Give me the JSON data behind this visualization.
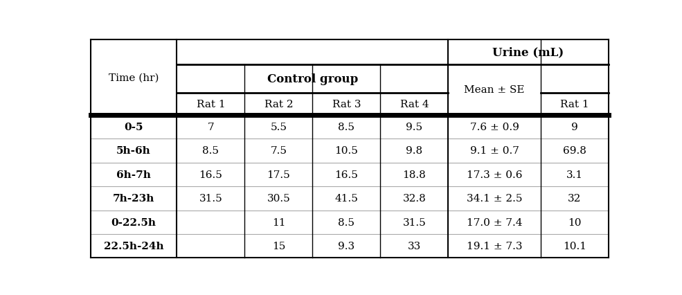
{
  "rows": [
    [
      "0-5",
      "7",
      "5.5",
      "8.5",
      "9.5",
      "7.6 ± 0.9",
      "9"
    ],
    [
      "5h-6h",
      "8.5",
      "7.5",
      "10.5",
      "9.8",
      "9.1 ± 0.7",
      "69.8"
    ],
    [
      "6h-7h",
      "16.5",
      "17.5",
      "16.5",
      "18.8",
      "17.3 ± 0.6",
      "3.1"
    ],
    [
      "7h-23h",
      "31.5",
      "30.5",
      "41.5",
      "32.8",
      "34.1 ± 2.5",
      "32"
    ],
    [
      "0-22.5h",
      "",
      "11",
      "8.5",
      "31.5",
      "17.0 ± 7.4",
      "10"
    ],
    [
      "22.5h-24h",
      "",
      "15",
      "9.3",
      "33",
      "19.1 ± 7.3",
      "10.1"
    ]
  ],
  "col_widths_rel": [
    1.4,
    1.1,
    1.1,
    1.1,
    1.1,
    1.5,
    1.1
  ],
  "figsize": [
    9.85,
    4.27
  ],
  "dpi": 100,
  "bg": "#ffffff",
  "text_color": "#000000",
  "gray_line": "#aaaaaa"
}
